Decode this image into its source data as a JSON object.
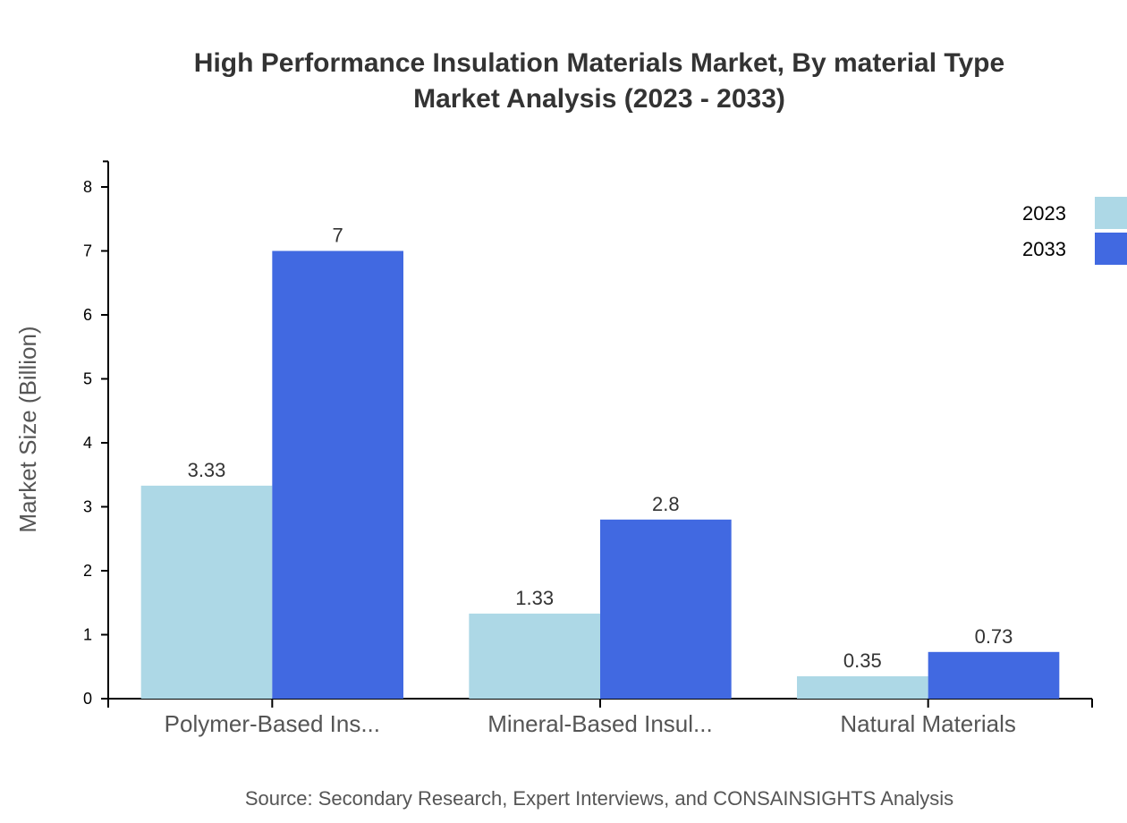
{
  "chart_data": {
    "type": "bar",
    "title": "High Performance Insulation Materials Market, By material Type",
    "subtitle": "Market Analysis (2023 - 2033)",
    "xlabel": "",
    "ylabel": "Market Size (Billion)",
    "ylim": [
      0,
      8.4
    ],
    "yticks": [
      0,
      1,
      2,
      3,
      4,
      5,
      6,
      7,
      8
    ],
    "categories": [
      "Polymer-Based Ins...",
      "Mineral-Based Insul...",
      "Natural Materials"
    ],
    "series": [
      {
        "name": "2023",
        "values": [
          3.33,
          1.33,
          0.35
        ],
        "color": "#ADD8E6"
      },
      {
        "name": "2033",
        "values": [
          7,
          2.8,
          0.73
        ],
        "color": "#4169E1"
      }
    ],
    "grid": false,
    "legend": "top-right",
    "source": "Source: Secondary Research, Expert Interviews, and CONSAINSIGHTS Analysis"
  }
}
